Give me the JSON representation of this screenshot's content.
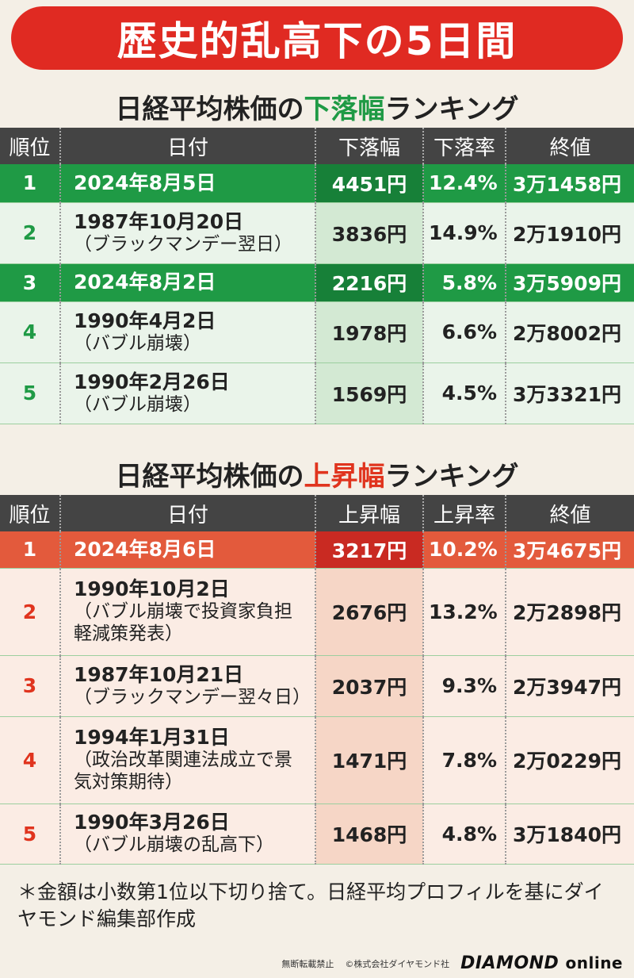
{
  "banner_title": "歴史的乱高下の5日間",
  "down": {
    "title_pre": "日経平均株価の",
    "title_hl": "下落幅",
    "title_post": "ランキング",
    "headers": [
      "順位",
      "日付",
      "下落幅",
      "下落率",
      "終値"
    ],
    "rows": [
      {
        "rank": "1",
        "date": "2024年8月5日",
        "note": "",
        "amount": "4451円",
        "rate": "12.4%",
        "close": "3万1458円"
      },
      {
        "rank": "2",
        "date": "1987年10月20日",
        "note": "（ブラックマンデー翌日）",
        "amount": "3836円",
        "rate": "14.9%",
        "close": "2万1910円"
      },
      {
        "rank": "3",
        "date": "2024年8月2日",
        "note": "",
        "amount": "2216円",
        "rate": "5.8%",
        "close": "3万5909円"
      },
      {
        "rank": "4",
        "date": "1990年4月2日",
        "note": "（バブル崩壊）",
        "amount": "1978円",
        "rate": "6.6%",
        "close": "2万8002円"
      },
      {
        "rank": "5",
        "date": "1990年2月26日",
        "note": "（バブル崩壊）",
        "amount": "1569円",
        "rate": "4.5%",
        "close": "3万3321円"
      }
    ]
  },
  "up": {
    "title_pre": "日経平均株価の",
    "title_hl": "上昇幅",
    "title_post": "ランキング",
    "headers": [
      "順位",
      "日付",
      "上昇幅",
      "上昇率",
      "終値"
    ],
    "rows": [
      {
        "rank": "1",
        "date": "2024年8月6日",
        "note": "",
        "amount": "3217円",
        "rate": "10.2%",
        "close": "3万4675円"
      },
      {
        "rank": "2",
        "date": "1990年10月2日",
        "note": "（バブル崩壊で投資家負担軽減策発表）",
        "amount": "2676円",
        "rate": "13.2%",
        "close": "2万2898円"
      },
      {
        "rank": "3",
        "date": "1987年10月21日",
        "note": "（ブラックマンデー翌々日）",
        "amount": "2037円",
        "rate": "9.3%",
        "close": "2万3947円"
      },
      {
        "rank": "4",
        "date": "1994年1月31日",
        "note": "（政治改革関連法成立で景気対策期待）",
        "amount": "1471円",
        "rate": "7.8%",
        "close": "2万0229円"
      },
      {
        "rank": "5",
        "date": "1990年3月26日",
        "note": "（バブル崩壊の乱高下）",
        "amount": "1468円",
        "rate": "4.8%",
        "close": "3万1840円"
      }
    ]
  },
  "note": "＊金額は小数第1位以下切り捨て。日経平均プロフィルを基にダイヤモンド編集部作成",
  "footer": {
    "reprint": "無断転載禁止",
    "copyright": "©株式会社ダイヤモンド社",
    "logo_main": "DIAMOND",
    "logo_sub": "online"
  }
}
